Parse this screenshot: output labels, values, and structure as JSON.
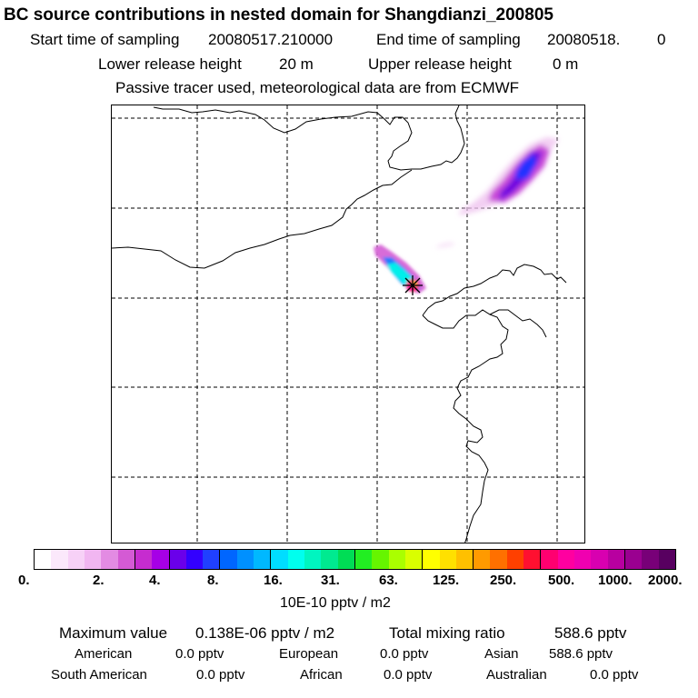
{
  "header": {
    "title": "BC  source contributions in nested domain for Shangdianzi_200805",
    "start_label": "Start time of sampling",
    "start_value": "20080517.210000",
    "end_label": "End time of sampling",
    "end_value": "20080518.",
    "end_extra": "0",
    "lower_label": "Lower release height",
    "lower_value": "20 m",
    "upper_label": "Upper release height",
    "upper_value": "0 m",
    "note": "Passive tracer used, meteorological data are from ECMWF"
  },
  "colorbar": {
    "ticks": [
      "0.",
      "2.",
      "4.",
      "8.",
      "16.",
      "31.",
      "63.",
      "125.",
      "250.",
      "500.",
      "1000.",
      "2000."
    ],
    "units": "10E-10 pptv / m2",
    "colors": [
      "#ffffff",
      "#fbe8fb",
      "#f7d1f7",
      "#f1b6f1",
      "#e38be3",
      "#d45ad4",
      "#c62ccf",
      "#a600e6",
      "#6a00ea",
      "#3300ff",
      "#2040ff",
      "#0066ff",
      "#0090ff",
      "#00b8ff",
      "#00ddff",
      "#00ffee",
      "#00f5c0",
      "#00ea90",
      "#00dd55",
      "#22ee22",
      "#66f500",
      "#aaff00",
      "#d9ff00",
      "#ffff00",
      "#ffe000",
      "#ffc000",
      "#ff9a00",
      "#ff7000",
      "#ff4000",
      "#ff1030",
      "#ff0070",
      "#ff00a0",
      "#f000b0",
      "#d800b0",
      "#b800a0",
      "#9a0090",
      "#780078",
      "#580060"
    ]
  },
  "stats": {
    "max_label": "Maximum value",
    "max_value": "0.138E-06 pptv / m2",
    "total_label": "Total mixing ratio",
    "total_value": "588.6 pptv",
    "regions": [
      {
        "label": "American",
        "value": "0.0 pptv"
      },
      {
        "label": "European",
        "value": "0.0 pptv"
      },
      {
        "label": "Asian",
        "value": "588.6 pptv"
      },
      {
        "label": "South American",
        "value": "0.0 pptv"
      },
      {
        "label": "African",
        "value": "0.0 pptv"
      },
      {
        "label": "Australian",
        "value": "0.0 pptv"
      }
    ]
  }
}
